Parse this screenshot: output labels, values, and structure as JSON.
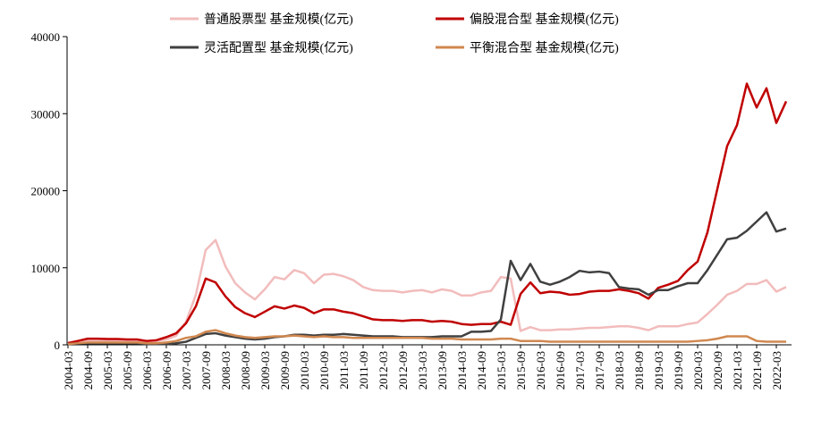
{
  "chart_data": {
    "type": "line",
    "legend": "top",
    "categories": [
      "2004-03",
      null,
      "2004-09",
      null,
      "2005-03",
      null,
      "2005-09",
      null,
      "2006-03",
      null,
      "2006-09",
      null,
      "2007-03",
      null,
      "2007-09",
      null,
      "2008-03",
      null,
      "2008-09",
      null,
      "2009-03",
      null,
      "2009-09",
      null,
      "2010-03",
      null,
      "2010-09",
      null,
      "2011-03",
      null,
      "2011-09",
      null,
      "2012-03",
      null,
      "2012-09",
      null,
      "2013-03",
      null,
      "2013-09",
      null,
      "2014-03",
      null,
      "2014-09",
      null,
      "2015-03",
      null,
      "2015-09",
      null,
      "2016-03",
      null,
      "2016-09",
      null,
      "2017-03",
      null,
      "2017-09",
      null,
      "2018-03",
      null,
      "2018-09",
      null,
      "2019-03",
      null,
      "2019-09",
      null,
      "2020-03",
      null,
      "2020-09",
      null,
      "2021-03",
      null,
      "2021-09",
      null,
      "2022-03",
      null
    ],
    "ylim": [
      0,
      40000
    ],
    "yticks": [
      0,
      10000,
      20000,
      30000,
      40000
    ],
    "series": [
      {
        "name": "普通股票型 基金规模(亿元)",
        "color": "#f2bcbc",
        "values": [
          300,
          500,
          600,
          600,
          500,
          500,
          500,
          400,
          400,
          500,
          700,
          1200,
          3000,
          6500,
          12300,
          13600,
          10200,
          8000,
          6800,
          5900,
          7200,
          8800,
          8500,
          9700,
          9300,
          8000,
          9100,
          9200,
          8900,
          8400,
          7500,
          7100,
          7000,
          7000,
          6800,
          7000,
          7100,
          6800,
          7200,
          7000,
          6400,
          6400,
          6800,
          7000,
          8800,
          8600,
          1800,
          2300,
          1900,
          1900,
          2000,
          2000,
          2100,
          2200,
          2200,
          2300,
          2400,
          2400,
          2200,
          1900,
          2400,
          2400,
          2400,
          2700,
          2900,
          4000,
          5200,
          6500,
          7000,
          7900,
          7900,
          8400,
          6900,
          7500
        ]
      },
      {
        "name": "偏股混合型 基金规模(亿元)",
        "color": "#c00000",
        "values": [
          200,
          500,
          800,
          800,
          750,
          750,
          700,
          700,
          500,
          600,
          1000,
          1500,
          2800,
          5000,
          8600,
          8100,
          6300,
          4900,
          4100,
          3600,
          4300,
          5000,
          4700,
          5100,
          4800,
          4100,
          4600,
          4600,
          4300,
          4100,
          3700,
          3300,
          3200,
          3200,
          3100,
          3200,
          3200,
          3000,
          3100,
          3000,
          2700,
          2600,
          2700,
          2700,
          3000,
          2600,
          6600,
          8100,
          6700,
          6900,
          6800,
          6500,
          6600,
          6900,
          7000,
          7000,
          7200,
          7000,
          6700,
          6000,
          7400,
          7800,
          8300,
          9700,
          10800,
          14600,
          20200,
          25800,
          28500,
          33900,
          30800,
          33300,
          28800,
          31600
        ]
      },
      {
        "name": "灵活配置型 基金规模(亿元)",
        "color": "#404040",
        "values": [
          100,
          200,
          200,
          200,
          200,
          200,
          200,
          200,
          100,
          100,
          100,
          200,
          400,
          900,
          1400,
          1500,
          1200,
          1000,
          800,
          700,
          800,
          1000,
          1100,
          1300,
          1300,
          1200,
          1300,
          1300,
          1400,
          1300,
          1200,
          1100,
          1100,
          1100,
          1000,
          1000,
          1000,
          1000,
          1100,
          1100,
          1100,
          1700,
          1700,
          1800,
          3300,
          10900,
          8400,
          10500,
          8200,
          7800,
          8200,
          8800,
          9600,
          9400,
          9500,
          9300,
          7500,
          7300,
          7200,
          6500,
          7100,
          7100,
          7600,
          8000,
          8000,
          9700,
          11700,
          13700,
          13900,
          14800,
          16000,
          17200,
          14700,
          15100
        ]
      },
      {
        "name": "平衡混合型 基金规模(亿元)",
        "color": "#d08850",
        "values": [
          100,
          200,
          300,
          300,
          300,
          300,
          300,
          300,
          200,
          200,
          300,
          500,
          900,
          1100,
          1700,
          1900,
          1500,
          1200,
          1000,
          900,
          1000,
          1100,
          1100,
          1200,
          1100,
          1000,
          1100,
          1000,
          1000,
          900,
          900,
          900,
          900,
          900,
          900,
          900,
          900,
          800,
          800,
          800,
          700,
          700,
          700,
          700,
          800,
          800,
          500,
          500,
          500,
          400,
          400,
          400,
          400,
          400,
          400,
          400,
          400,
          400,
          400,
          400,
          400,
          400,
          400,
          400,
          500,
          600,
          800,
          1100,
          1100,
          1100,
          500,
          400,
          400,
          400
        ]
      }
    ]
  }
}
